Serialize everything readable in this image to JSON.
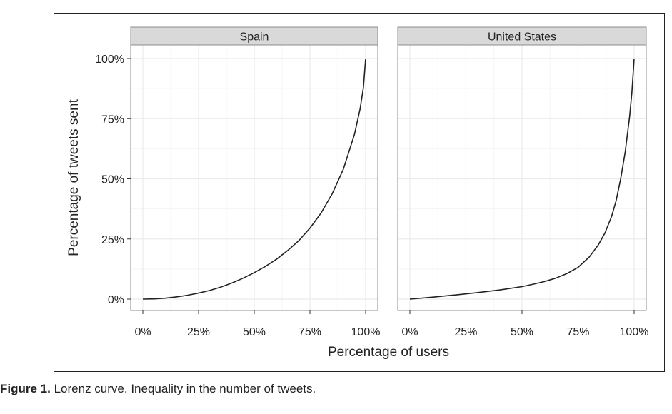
{
  "caption": {
    "label": "Figure 1.",
    "text": "Lorenz curve. Inequality in the number of tweets."
  },
  "colors": {
    "curve": "#222222",
    "panel_border": "#8c8c8c",
    "strip_fill": "#d9d9d9",
    "grid_major": "#ebebeb",
    "grid_minor": "#f5f5f5"
  },
  "chart_data": {
    "type": "line",
    "xlabel": "Percentage of users",
    "ylabel": "Percentage of tweets sent",
    "xlim": [
      0,
      100
    ],
    "ylim": [
      0,
      100
    ],
    "x_ticks": [
      "0%",
      "25%",
      "50%",
      "75%",
      "100%"
    ],
    "y_ticks": [
      "0%",
      "25%",
      "50%",
      "75%",
      "100%"
    ],
    "grid": true,
    "facets": [
      {
        "name": "Spain",
        "x": [
          0,
          5,
          10,
          15,
          20,
          25,
          30,
          35,
          40,
          45,
          50,
          55,
          60,
          65,
          70,
          75,
          80,
          85,
          90,
          95,
          97.5,
          99,
          100
        ],
        "y": [
          0,
          0.1,
          0.4,
          0.9,
          1.6,
          2.5,
          3.6,
          5.0,
          6.7,
          8.7,
          11.0,
          13.6,
          16.6,
          20.2,
          24.3,
          29.5,
          35.8,
          43.8,
          54.0,
          68.5,
          79.0,
          88.0,
          100
        ]
      },
      {
        "name": "United States",
        "x": [
          0,
          10,
          20,
          30,
          40,
          50,
          55,
          60,
          65,
          70,
          75,
          80,
          84,
          87,
          90,
          92,
          94,
          96,
          98,
          99,
          100
        ],
        "y": [
          0,
          0.8,
          1.7,
          2.7,
          3.8,
          5.2,
          6.2,
          7.3,
          8.7,
          10.6,
          13.2,
          17.5,
          22.5,
          27.5,
          34.5,
          41.0,
          50.0,
          61.0,
          76.0,
          86.0,
          100
        ]
      }
    ]
  }
}
